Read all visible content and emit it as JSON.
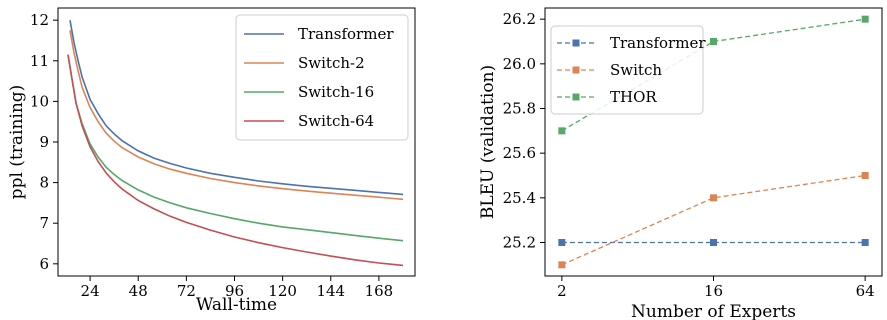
{
  "chart_data": [
    {
      "type": "line",
      "title": "",
      "xlabel": "Wall-time",
      "ylabel": "ppl (training)",
      "xlim": [
        8,
        186
      ],
      "ylim": [
        5.7,
        12.3
      ],
      "xticks": [
        24,
        48,
        72,
        96,
        120,
        144,
        168
      ],
      "yticks": [
        6,
        7,
        8,
        9,
        10,
        11,
        12
      ],
      "grid": false,
      "legend_position": "top-right",
      "series": [
        {
          "name": "Transformer",
          "color": "#4c72b0",
          "x": [
            14,
            16,
            18,
            20,
            24,
            28,
            32,
            36,
            40,
            48,
            56,
            64,
            72,
            84,
            96,
            108,
            120,
            132,
            144,
            156,
            168,
            180
          ],
          "y": [
            12.0,
            11.45,
            11.0,
            10.6,
            10.05,
            9.7,
            9.4,
            9.2,
            9.03,
            8.78,
            8.6,
            8.47,
            8.36,
            8.23,
            8.13,
            8.04,
            7.97,
            7.91,
            7.86,
            7.81,
            7.76,
            7.71
          ]
        },
        {
          "name": "Switch-2",
          "color": "#dd8452",
          "x": [
            14,
            16,
            18,
            20,
            24,
            28,
            32,
            36,
            40,
            48,
            56,
            64,
            72,
            84,
            96,
            108,
            120,
            132,
            144,
            156,
            168,
            180
          ],
          "y": [
            11.75,
            11.2,
            10.75,
            10.35,
            9.85,
            9.5,
            9.22,
            9.02,
            8.86,
            8.63,
            8.46,
            8.33,
            8.23,
            8.1,
            8.0,
            7.92,
            7.85,
            7.79,
            7.74,
            7.69,
            7.64,
            7.59
          ]
        },
        {
          "name": "Switch-16",
          "color": "#55a868",
          "x": [
            13,
            15,
            17,
            20,
            24,
            28,
            32,
            36,
            40,
            48,
            56,
            64,
            72,
            84,
            96,
            108,
            120,
            132,
            144,
            156,
            168,
            180
          ],
          "y": [
            11.15,
            10.55,
            9.95,
            9.45,
            8.95,
            8.63,
            8.38,
            8.2,
            8.05,
            7.82,
            7.64,
            7.5,
            7.38,
            7.24,
            7.11,
            7.0,
            6.91,
            6.84,
            6.77,
            6.7,
            6.63,
            6.57
          ]
        },
        {
          "name": "Switch-64",
          "color": "#c44e52",
          "x": [
            13,
            15,
            17,
            20,
            24,
            28,
            32,
            36,
            40,
            48,
            56,
            64,
            72,
            84,
            96,
            108,
            120,
            132,
            144,
            156,
            168,
            180
          ],
          "y": [
            11.15,
            10.55,
            9.95,
            9.4,
            8.88,
            8.52,
            8.24,
            8.02,
            7.84,
            7.56,
            7.35,
            7.17,
            7.02,
            6.83,
            6.66,
            6.52,
            6.4,
            6.29,
            6.19,
            6.1,
            6.02,
            5.96
          ]
        }
      ]
    },
    {
      "type": "line",
      "title": "",
      "xlabel": "Number of Experts",
      "ylabel": "BLEU (validation)",
      "categories": [
        "2",
        "16",
        "64"
      ],
      "ylim": [
        25.05,
        26.25
      ],
      "yticks": [
        "25.2",
        "25.4",
        "25.6",
        "25.8",
        "26.0",
        "26.2"
      ],
      "grid": false,
      "legend_position": "top-left",
      "series": [
        {
          "name": "Transformer",
          "color": "#4c72b0",
          "values": [
            25.2,
            25.2,
            25.2
          ]
        },
        {
          "name": "Switch",
          "color": "#dd8452",
          "values": [
            25.1,
            25.4,
            25.5
          ]
        },
        {
          "name": "THOR",
          "color": "#55a868",
          "values": [
            25.7,
            26.1,
            26.2
          ]
        }
      ]
    }
  ]
}
